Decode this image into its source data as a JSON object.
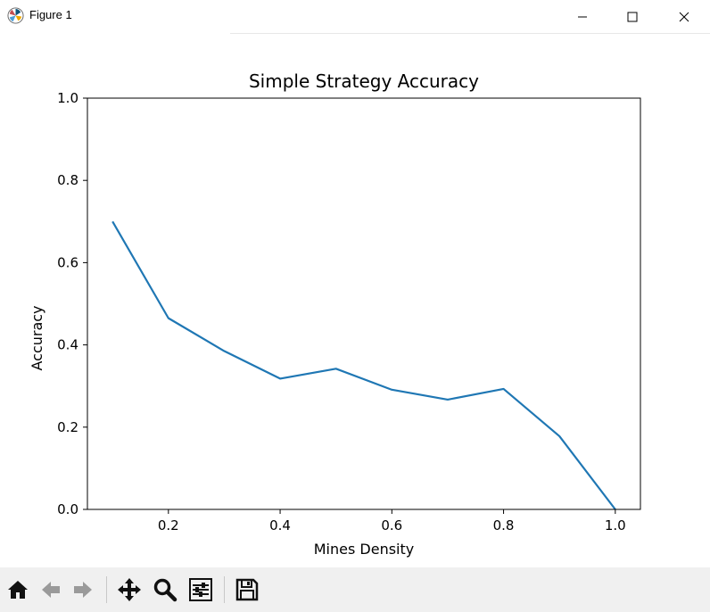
{
  "window": {
    "title": "Figure 1",
    "icon": "matplotlib-logo-icon",
    "controls": [
      "minimize-icon",
      "maximize-icon",
      "close-icon"
    ]
  },
  "toolbar": {
    "buttons": [
      {
        "name": "home-button",
        "icon": "home-icon"
      },
      {
        "name": "back-button",
        "icon": "arrow-left-icon"
      },
      {
        "name": "forward-button",
        "icon": "arrow-right-icon"
      },
      {
        "name": "pan-button",
        "icon": "move-icon"
      },
      {
        "name": "zoom-button",
        "icon": "magnifier-icon"
      },
      {
        "name": "configure-subplots-button",
        "icon": "sliders-icon"
      },
      {
        "name": "save-button",
        "icon": "floppy-disk-icon"
      }
    ]
  },
  "chart_data": {
    "type": "line",
    "title": "Simple Strategy Accuracy",
    "xlabel": "Mines Density",
    "ylabel": "Accuracy",
    "x": [
      0.1,
      0.2,
      0.3,
      0.4,
      0.5,
      0.6,
      0.7,
      0.8,
      0.9,
      1.0
    ],
    "series": [
      {
        "values": [
          0.7,
          0.465,
          0.385,
          0.318,
          0.342,
          0.291,
          0.267,
          0.293,
          0.178,
          0.0
        ],
        "color": "#1f77b4"
      }
    ],
    "xlim": [
      0.055,
      1.045
    ],
    "ylim": [
      0.0,
      1.0
    ],
    "xticks": [
      "0.2",
      "0.4",
      "0.6",
      "0.8",
      "1.0"
    ],
    "yticks": [
      "0.0",
      "0.2",
      "0.4",
      "0.6",
      "0.8",
      "1.0"
    ],
    "grid": false,
    "legend": false
  }
}
